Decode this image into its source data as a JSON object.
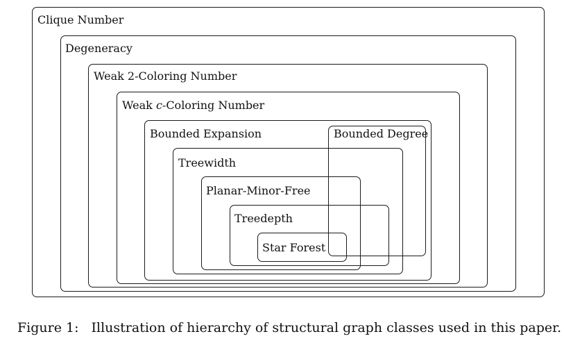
{
  "diagram": {
    "classes": {
      "clique_number": "Clique Number",
      "degeneracy": "Degeneracy",
      "weak_2_coloring": "Weak 2-Coloring Number",
      "weak_c_coloring_prefix": "Weak ",
      "weak_c_coloring_var": "c",
      "weak_c_coloring_suffix": "-Coloring Number",
      "bounded_expansion": "Bounded Expansion",
      "bounded_degree": "Bounded Degree",
      "treewidth": "Treewidth",
      "planar_minor_free": "Planar-Minor-Free",
      "treedepth": "Treedepth",
      "star_forest": "Star Forest"
    }
  },
  "caption": {
    "prefix": "Figure 1:",
    "text": "Illustration of hierarchy of structural graph classes used in this paper."
  }
}
